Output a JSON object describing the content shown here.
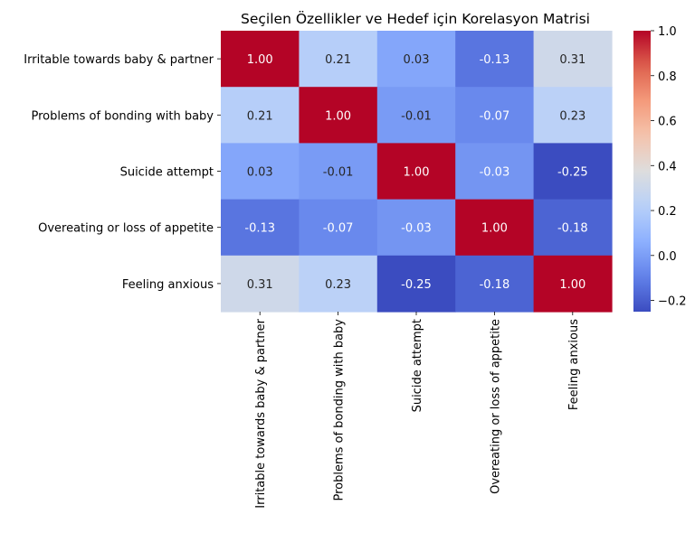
{
  "chart_data": {
    "type": "heatmap",
    "title": "Seçilen Özellikler ve Hedef için Korelasyon Matrisi",
    "row_labels": [
      "Irritable towards baby & partner",
      "Problems of bonding with baby",
      "Suicide attempt",
      "Overeating or loss of appetite",
      "Feeling anxious"
    ],
    "col_labels": [
      "Irritable towards baby & partner",
      "Problems of bonding with baby",
      "Suicide attempt",
      "Overeating or loss of appetite",
      "Feeling anxious"
    ],
    "values": [
      [
        1.0,
        0.21,
        0.03,
        -0.13,
        0.31
      ],
      [
        0.21,
        1.0,
        -0.01,
        -0.07,
        0.23
      ],
      [
        0.03,
        -0.01,
        1.0,
        -0.03,
        -0.25
      ],
      [
        -0.13,
        -0.07,
        -0.03,
        1.0,
        -0.18
      ],
      [
        0.31,
        0.23,
        -0.25,
        -0.18,
        1.0
      ]
    ],
    "value_labels": [
      [
        "1.00",
        "0.21",
        "0.03",
        "-0.13",
        "0.31"
      ],
      [
        "0.21",
        "1.00",
        "-0.01",
        "-0.07",
        "0.23"
      ],
      [
        "0.03",
        "-0.01",
        "1.00",
        "-0.03",
        "-0.25"
      ],
      [
        "-0.13",
        "-0.07",
        "-0.03",
        "1.00",
        "-0.18"
      ],
      [
        "0.31",
        "0.23",
        "-0.25",
        "-0.18",
        "1.00"
      ]
    ],
    "colorscale": "coolwarm",
    "vmin": -0.25,
    "vmax": 1.0,
    "colorbar_ticks": [
      -0.2,
      0.0,
      0.2,
      0.4,
      0.6,
      0.8,
      1.0
    ],
    "colorbar_tick_labels": [
      "−0.2",
      "0.0",
      "0.2",
      "0.4",
      "0.6",
      "0.8",
      "1.0"
    ]
  }
}
